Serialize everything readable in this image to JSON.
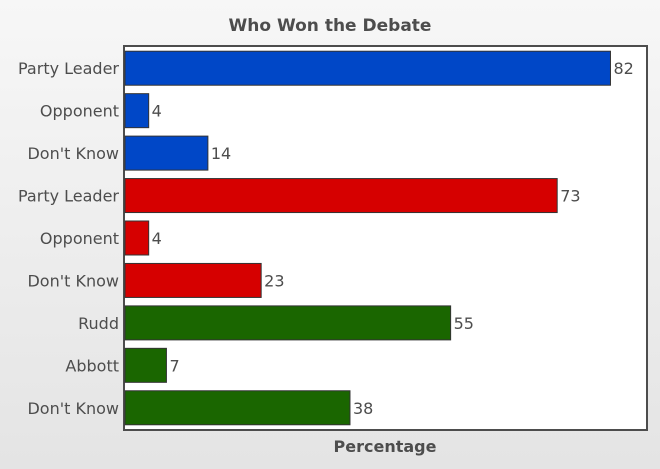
{
  "chart_data": {
    "type": "bar",
    "orientation": "horizontal",
    "title": "Who Won the Debate",
    "xlabel": "Percentage",
    "ylabel": "",
    "xlim": [
      0,
      88
    ],
    "grid": false,
    "legend": "none",
    "categories": [
      "Party Leader",
      "Opponent",
      "Don't Know",
      "Party Leader",
      "Opponent",
      "Don't Know",
      "Rudd",
      "Abbott",
      "Don't Know"
    ],
    "values": [
      82,
      4,
      14,
      73,
      4,
      23,
      55,
      7,
      38
    ],
    "bar_colors": [
      "#0047c7",
      "#0047c7",
      "#0047c7",
      "#d60000",
      "#d60000",
      "#d60000",
      "#1a6600",
      "#1a6600",
      "#1a6600"
    ]
  }
}
